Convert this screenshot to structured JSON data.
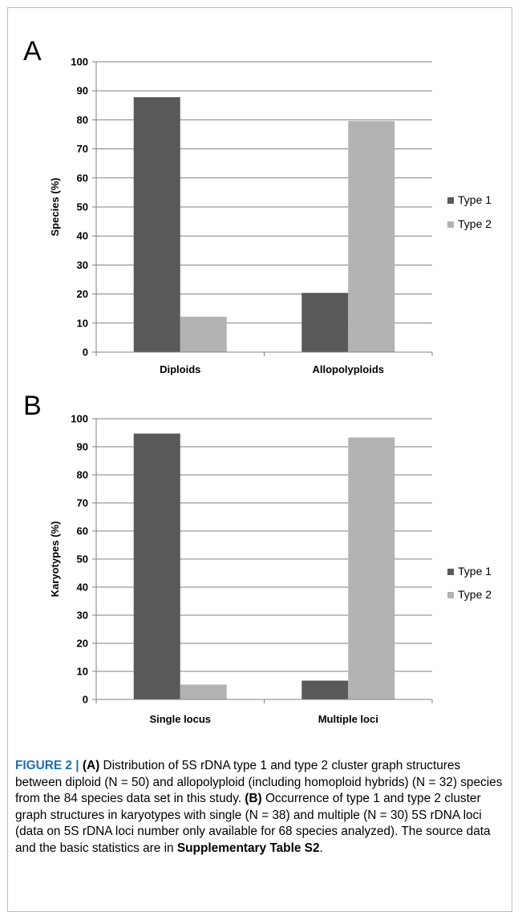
{
  "figure": {
    "caption": {
      "fig_label": "FIGURE 2 |",
      "a_label": "(A)",
      "a_text": " Distribution of 5S rDNA type 1 and type 2 cluster graph structures between diploid (N = 50) and allopolyploid (including homoploid hybrids) (N = 32) species from the 84 species data set in this study. ",
      "b_label": "(B)",
      "b_text": " Occurrence of type 1 and type 2 cluster graph structures in karyotypes with single (N = 38) and multiple (N = 30) 5S rDNA loci (data on 5S rDNA loci number only available for 68 species analyzed). The source data and the basic statistics are in ",
      "table_ref": "Supplementary Table S2",
      "end": "."
    }
  },
  "colors": {
    "type1": "#595959",
    "type2": "#b3b3b3",
    "axis": "#808080"
  },
  "chart_data": [
    {
      "panel_label": "A",
      "type": "bar",
      "categories": [
        "Diploids",
        "Allopolyploids"
      ],
      "series": [
        {
          "name": "Type 1",
          "values": [
            87.8,
            20.4
          ]
        },
        {
          "name": "Type 2",
          "values": [
            12.2,
            79.6
          ]
        }
      ],
      "ylabel": "Species (%)",
      "xlabel": "",
      "ylim": [
        0,
        100
      ],
      "yticks": [
        0,
        10,
        20,
        30,
        40,
        50,
        60,
        70,
        80,
        90,
        100
      ],
      "grid": true,
      "legend": "right"
    },
    {
      "panel_label": "B",
      "type": "bar",
      "categories": [
        "Single locus",
        "Multiple loci"
      ],
      "series": [
        {
          "name": "Type 1",
          "values": [
            94.7,
            6.7
          ]
        },
        {
          "name": "Type 2",
          "values": [
            5.3,
            93.3
          ]
        }
      ],
      "ylabel": "Karyotypes (%)",
      "xlabel": "",
      "ylim": [
        0,
        100
      ],
      "yticks": [
        0,
        10,
        20,
        30,
        40,
        50,
        60,
        70,
        80,
        90,
        100
      ],
      "grid": true,
      "legend": "right"
    }
  ]
}
